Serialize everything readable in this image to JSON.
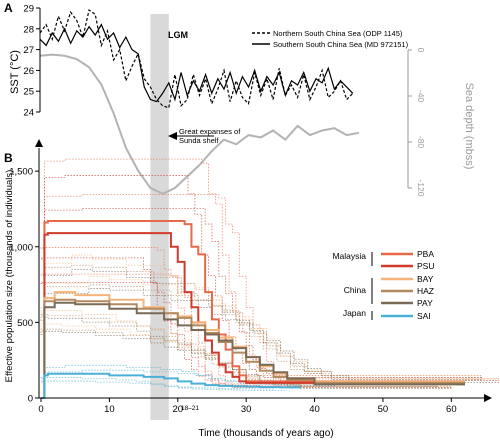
{
  "chart_data": [
    {
      "panel": "A",
      "type": "line",
      "ylabel": "SST (°C)",
      "y_ticks": [
        "24",
        "25",
        "26",
        "27",
        "28",
        "29"
      ],
      "ylim": [
        24,
        29
      ],
      "xlim": [
        0,
        60
      ],
      "right_axis": {
        "label": "Sea depth (mbss)",
        "ticks": [
          "0",
          "-40",
          "-80",
          "-120"
        ],
        "range": [
          -120,
          0
        ]
      },
      "shaded_band": {
        "label": "LGM",
        "x_range": [
          18,
          21
        ],
        "color": "#d9d9d9"
      },
      "annotation": {
        "text_line1": "Great expanses of",
        "text_line2": "Sunda shelf",
        "arrow": "left",
        "x": 20
      },
      "legend_position": "top-right",
      "series": [
        {
          "name": "Northern South China Sea (ODP 1145)",
          "style": "dashed",
          "color": "#000000",
          "x": [
            0,
            1,
            2,
            3,
            4,
            5,
            6,
            7,
            8,
            9,
            10,
            11,
            12,
            13,
            14,
            15,
            16,
            17,
            18,
            19,
            20,
            21,
            22,
            23,
            24,
            25,
            26,
            27,
            28,
            29,
            30,
            31,
            32,
            33,
            34,
            35,
            36,
            37,
            38,
            39,
            40,
            41,
            42,
            43,
            44,
            45,
            46,
            47,
            48,
            49,
            50,
            51
          ],
          "values": [
            27.8,
            28.2,
            27.5,
            28.6,
            27.9,
            28.8,
            28.4,
            27.6,
            28.9,
            28.7,
            27.2,
            27.9,
            26.5,
            27.0,
            25.5,
            26.2,
            26.8,
            25.6,
            25.2,
            24.6,
            24.3,
            24.2,
            25.8,
            24.3,
            24.6,
            25.8,
            24.8,
            25.6,
            24.4,
            25.1,
            26.0,
            24.5,
            25.5,
            24.7,
            24.4,
            25.9,
            24.8,
            25.6,
            24.6,
            26.1,
            24.8,
            25.3,
            24.7,
            25.8,
            24.6,
            25.2,
            26.0,
            24.7,
            25.0,
            25.5,
            24.6,
            24.9
          ]
        },
        {
          "name": "Southern South China Sea (MD 972151)",
          "style": "solid",
          "color": "#000000",
          "x": [
            0,
            1,
            2,
            3,
            4,
            5,
            6,
            7,
            8,
            9,
            10,
            11,
            12,
            13,
            14,
            15,
            16,
            17,
            18,
            19,
            20,
            21,
            22,
            23,
            24,
            25,
            26,
            27,
            28,
            29,
            30,
            31,
            32,
            33,
            34,
            35,
            36,
            37,
            38,
            39,
            40,
            41,
            42,
            43,
            44,
            45,
            46,
            47,
            48,
            49,
            50,
            51
          ],
          "values": [
            27.5,
            27.2,
            27.8,
            27.4,
            28.0,
            27.3,
            27.9,
            27.6,
            28.1,
            27.7,
            28.2,
            27.5,
            27.8,
            27.1,
            27.6,
            27.0,
            26.8,
            25.2,
            24.6,
            24.5,
            24.9,
            25.4,
            24.6,
            25.9,
            24.8,
            25.5,
            25.0,
            25.8,
            24.9,
            25.6,
            25.1,
            25.9,
            24.9,
            25.7,
            25.2,
            26.0,
            25.0,
            25.7,
            25.3,
            25.9,
            24.8,
            25.5,
            25.3,
            25.9,
            25.0,
            25.6,
            25.4,
            26.1,
            25.1,
            25.5,
            25.2,
            24.9
          ]
        },
        {
          "name": "",
          "role": "sea depth (right axis)",
          "style": "solid",
          "color": "#b3b3b3",
          "x": [
            0,
            2,
            4,
            6,
            8,
            10,
            12,
            14,
            16,
            18,
            20,
            22,
            24,
            26,
            28,
            30,
            32,
            34,
            36,
            38,
            40,
            42,
            44,
            46,
            48,
            50,
            52
          ],
          "values": [
            -5,
            -4,
            -5,
            -8,
            -15,
            -30,
            -55,
            -85,
            -105,
            -120,
            -125,
            -120,
            -110,
            -100,
            -88,
            -78,
            -82,
            -74,
            -76,
            -70,
            -78,
            -66,
            -74,
            -70,
            -68,
            -74,
            -72
          ]
        }
      ]
    },
    {
      "panel": "B",
      "type": "line",
      "xlabel": "Time (thousands of years ago)",
      "ylabel": "Effective population size (thousands of individuals)",
      "x_ticks": [
        "0",
        "10",
        "20",
        "30",
        "40",
        "50",
        "60"
      ],
      "y_ticks": [
        "0",
        "500",
        "1,000",
        "1,500"
      ],
      "xlim": [
        0,
        62
      ],
      "ylim": [
        0,
        1600
      ],
      "shaded_band": {
        "x_range": [
          18,
          21
        ],
        "label": "18–21",
        "color": "#d9d9d9"
      },
      "legend_position": "right",
      "legend_groups": [
        {
          "region": "Malaysia",
          "members": [
            "PBA",
            "PSU"
          ]
        },
        {
          "region": "China",
          "members": [
            "BAY",
            "HAZ",
            "PAY"
          ]
        },
        {
          "region": "Japan",
          "members": [
            "SAI"
          ]
        }
      ],
      "series": [
        {
          "name": "PBA",
          "color": "#e8694a",
          "x": [
            0,
            0.5,
            1,
            20,
            21,
            22,
            23,
            24,
            25,
            26,
            27,
            28,
            29,
            30,
            40,
            50,
            62
          ],
          "values": [
            0,
            1160,
            1170,
            1170,
            1150,
            1000,
            950,
            700,
            520,
            420,
            320,
            210,
            150,
            110,
            110,
            110,
            110
          ]
        },
        {
          "name": "PSU",
          "color": "#d13a2c",
          "x": [
            0,
            0.5,
            1,
            18,
            19,
            20,
            21,
            22,
            23,
            24,
            25,
            26,
            27,
            28,
            29,
            30,
            40,
            50,
            62
          ],
          "values": [
            0,
            1080,
            1090,
            1090,
            1000,
            900,
            700,
            600,
            500,
            380,
            300,
            220,
            170,
            140,
            110,
            100,
            100,
            100,
            100
          ]
        },
        {
          "name": "BAY",
          "color": "#f5b37a",
          "x": [
            0,
            0.5,
            2,
            5,
            10,
            15,
            18,
            20,
            22,
            24,
            26,
            28,
            30,
            32,
            34,
            36,
            40,
            50,
            62
          ],
          "values": [
            0,
            660,
            700,
            680,
            650,
            600,
            560,
            540,
            500,
            450,
            400,
            340,
            270,
            210,
            160,
            130,
            110,
            110,
            110
          ]
        },
        {
          "name": "HAZ",
          "color": "#b38a5e",
          "x": [
            0,
            0.5,
            2,
            5,
            10,
            14,
            18,
            20,
            22,
            24,
            26,
            28,
            30,
            32,
            34,
            36,
            40,
            50,
            62
          ],
          "values": [
            0,
            640,
            650,
            640,
            620,
            590,
            560,
            530,
            480,
            430,
            370,
            300,
            240,
            180,
            140,
            120,
            100,
            100,
            100
          ]
        },
        {
          "name": "PAY",
          "color": "#7a6a55",
          "x": [
            0,
            0.5,
            2,
            5,
            10,
            14,
            18,
            20,
            22,
            24,
            26,
            28,
            30,
            32,
            34,
            36,
            40,
            50,
            62
          ],
          "values": [
            0,
            600,
            630,
            620,
            590,
            560,
            520,
            480,
            450,
            420,
            380,
            330,
            270,
            220,
            170,
            130,
            90,
            90,
            90
          ]
        },
        {
          "name": "SAI",
          "color": "#4ab0d6",
          "x": [
            0,
            0.5,
            1,
            5,
            10,
            15,
            18,
            20,
            22,
            24,
            26,
            28,
            30,
            32,
            35,
            38
          ],
          "values": [
            0,
            150,
            160,
            160,
            150,
            140,
            130,
            110,
            95,
            85,
            80,
            78,
            75,
            72,
            70,
            70
          ]
        }
      ]
    }
  ],
  "panel_labels": {
    "a": "A",
    "b": "B"
  },
  "legend_a": {
    "north": "Northern South China Sea (ODP 1145)",
    "south": "Southern South China Sea (MD 972151)"
  },
  "lgm_label": "LGM",
  "shelf_note": {
    "line1": "Great expanses of",
    "line2": "Sunda shelf"
  },
  "band_label": "18–21",
  "legend_b": {
    "malaysia": "Malaysia",
    "china": "China",
    "japan": "Japan",
    "pba": "PBA",
    "psu": "PSU",
    "bay": "BAY",
    "haz": "HAZ",
    "pay": "PAY",
    "sai": "SAI"
  },
  "axes": {
    "a_ylabel": "SST (°C)",
    "a_right_label": "Sea depth (mbss)",
    "b_ylabel": "Effective population size (thousands of individuals)",
    "b_xlabel": "Time (thousands of years ago)"
  }
}
